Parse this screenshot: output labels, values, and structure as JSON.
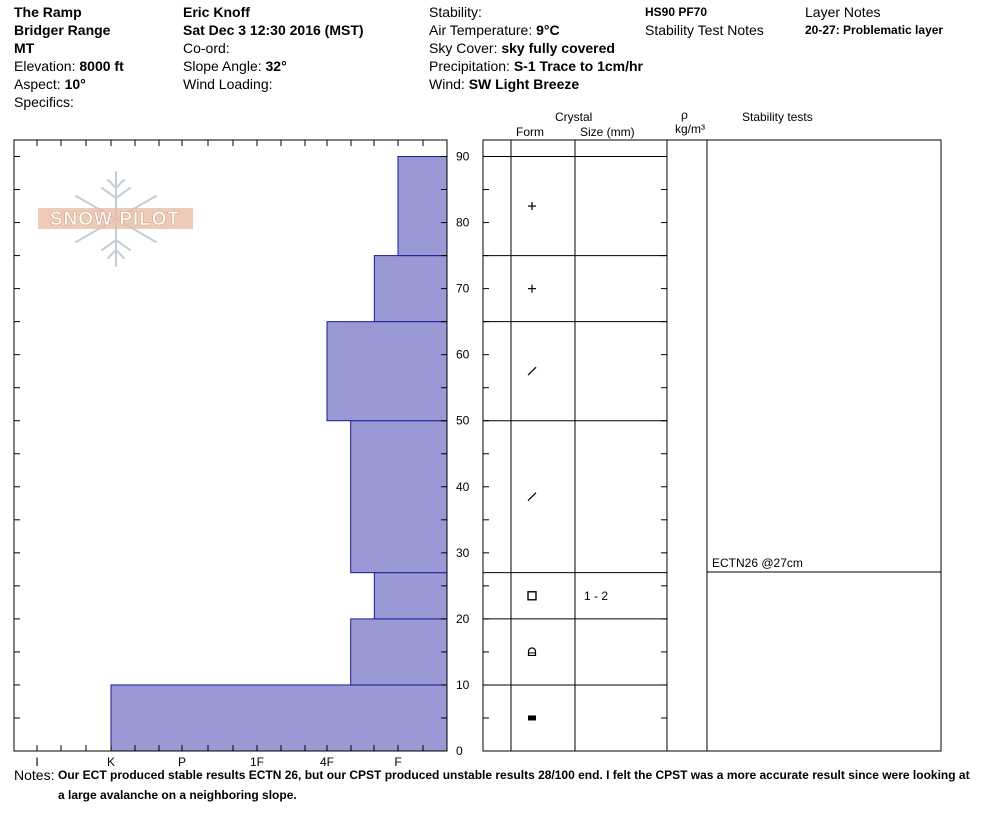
{
  "location": {
    "name": "The Ramp",
    "range": "Bridger Range",
    "state": "MT",
    "elevation_label": "Elevation:",
    "elevation": "8000 ft",
    "aspect_label": "Aspect:",
    "aspect": "10°",
    "specifics_label": "Specifics:"
  },
  "observer": {
    "name": "Eric Knoff",
    "datetime": "Sat Dec 3 12:30 2016 (MST)",
    "coord_label": "Co-ord:",
    "slope_label": "Slope Angle:",
    "slope": "32°",
    "wind_loading_label": "Wind Loading:"
  },
  "conditions": {
    "stability_label": "Stability:",
    "air_temp_label": "Air Temperature:",
    "air_temp": "9°C",
    "sky_label": "Sky Cover:",
    "sky": "sky fully covered",
    "precip_label": "Precipitation:",
    "precip": "S-1 Trace to 1cm/hr",
    "wind_label": "Wind:",
    "wind": "SW Light Breeze"
  },
  "hs": "HS90 PF70",
  "stability_test_notes_label": "Stability Test Notes",
  "layer_notes_label": "Layer Notes",
  "layer_note": {
    "range": "20-27:",
    "text": "Problematic layer"
  },
  "logo_text": "SNOW PILOT",
  "columns": {
    "crystal": "Crystal",
    "form": "Form",
    "size": "Size (mm)",
    "rho": "ρ",
    "density_unit": "kg/m³",
    "stability_tests": "Stability tests"
  },
  "stability_result": "ECTN26 @27cm",
  "notes_label": "Notes:",
  "notes": "Our ECT produced stable results ECTN 26, but our CPST produced unstable results 28/100 end. I felt the CPST was a more accurate result since were looking at a large avalanche on a neighboring slope.",
  "chart_data": {
    "type": "bar",
    "orientation": "horizontal",
    "hardness_scale": [
      "I",
      "K",
      "P",
      "1F",
      "4F",
      "F"
    ],
    "hardness_order_note": "hardness axis runs right (F = softest) to left (I = hardest)",
    "y_ticks": [
      0,
      10,
      20,
      30,
      40,
      50,
      60,
      70,
      80,
      90
    ],
    "ylim": [
      0,
      92.5
    ],
    "colors": {
      "layer_fill": "#9999d6",
      "layer_edge": "#1a1a9a"
    },
    "layers": [
      {
        "bottom": 0,
        "top": 10,
        "hardness": "K",
        "form": "melt-freeze crust",
        "size": ""
      },
      {
        "bottom": 10,
        "top": 20,
        "hardness": "4F-",
        "form": "rounding facets",
        "size": ""
      },
      {
        "bottom": 20,
        "top": 27,
        "hardness": "F+",
        "form": "facets",
        "size": "1 - 2"
      },
      {
        "bottom": 27,
        "top": 50,
        "hardness": "4F-",
        "form": "decomposing fragments",
        "size": ""
      },
      {
        "bottom": 50,
        "top": 65,
        "hardness": "4F",
        "form": "decomposing fragments",
        "size": ""
      },
      {
        "bottom": 65,
        "top": 75,
        "hardness": "F+",
        "form": "precipitation particles",
        "size": ""
      },
      {
        "bottom": 75,
        "top": 90,
        "hardness": "F",
        "form": "precipitation particles",
        "size": ""
      }
    ]
  }
}
